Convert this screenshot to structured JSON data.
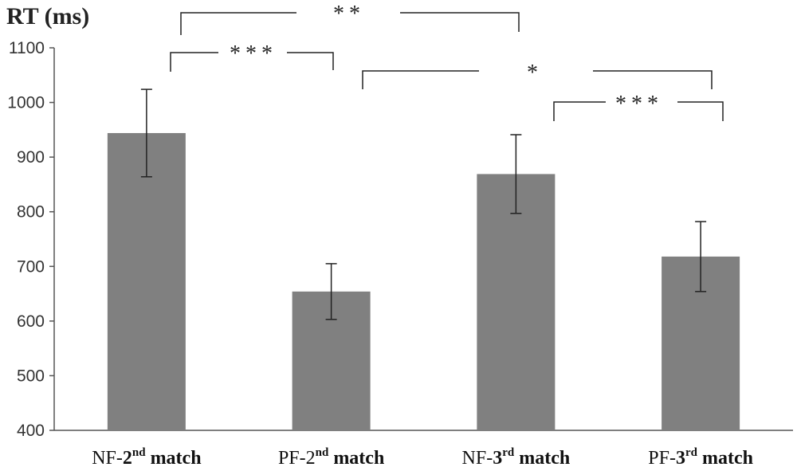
{
  "chart_data": {
    "type": "bar",
    "ylabel": "RT (ms)",
    "ylim": [
      400,
      1100
    ],
    "yticks": [
      400,
      500,
      600,
      700,
      800,
      900,
      1000,
      1100
    ],
    "categories": [
      {
        "pre": "NF-",
        "num": "2",
        "sup": "nd",
        "post": " match",
        "num_bold": true
      },
      {
        "pre": "PF-",
        "num": "2",
        "sup": "nd",
        "post": " match",
        "num_bold": false
      },
      {
        "pre": "NF-",
        "num": "3",
        "sup": "rd",
        "post": " match",
        "num_bold": true
      },
      {
        "pre": "PF-",
        "num": "3",
        "sup": "rd",
        "post": " match",
        "num_bold": true
      }
    ],
    "values": [
      944,
      654,
      869,
      718
    ],
    "errors": [
      80,
      51,
      72,
      64
    ],
    "bar_color": "#808080",
    "grid": false,
    "significance": [
      {
        "from": 0,
        "to": 2,
        "label": "**"
      },
      {
        "from": 0,
        "to": 1,
        "label": "***"
      },
      {
        "from": 1,
        "to": 3,
        "label": "*"
      },
      {
        "from": 2,
        "to": 3,
        "label": "***"
      }
    ]
  }
}
